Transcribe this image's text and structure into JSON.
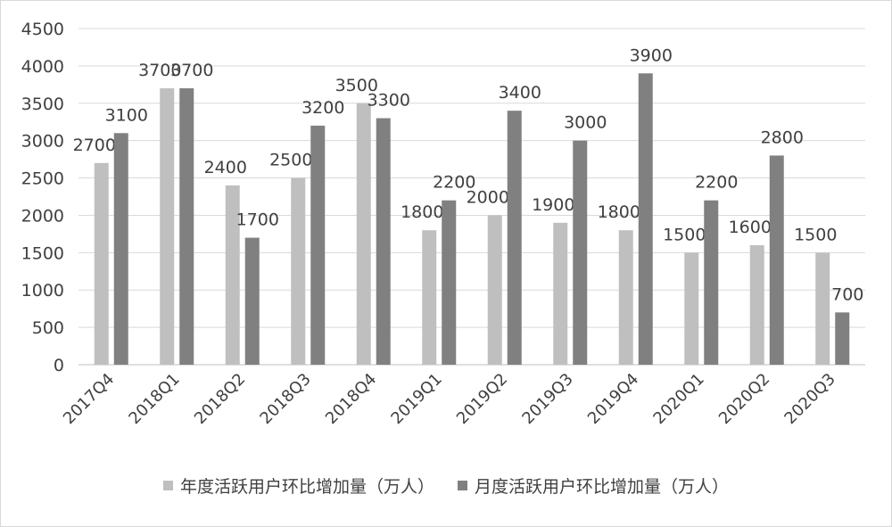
{
  "chart_data": {
    "type": "bar",
    "categories": [
      "2017Q4",
      "2018Q1",
      "2018Q2",
      "2018Q3",
      "2018Q4",
      "2019Q1",
      "2019Q2",
      "2019Q3",
      "2019Q4",
      "2020Q1",
      "2020Q2",
      "2020Q3"
    ],
    "series": [
      {
        "name": "年度活跃用户环比增加量（万人）",
        "color": "#bfbfbf",
        "values": [
          2700,
          3700,
          2400,
          2500,
          3500,
          1800,
          2000,
          1900,
          1800,
          1500,
          1600,
          1500
        ]
      },
      {
        "name": "月度活跃用户环比增加量（万人）",
        "color": "#808080",
        "values": [
          3100,
          3700,
          1700,
          3200,
          3300,
          2200,
          3400,
          3000,
          3900,
          2200,
          2800,
          700
        ]
      }
    ],
    "ylim": [
      0,
      4500
    ],
    "yticks": [
      0,
      500,
      1000,
      1500,
      2000,
      2500,
      3000,
      3500,
      4000,
      4500
    ],
    "grid": true,
    "legend_position": "bottom"
  }
}
